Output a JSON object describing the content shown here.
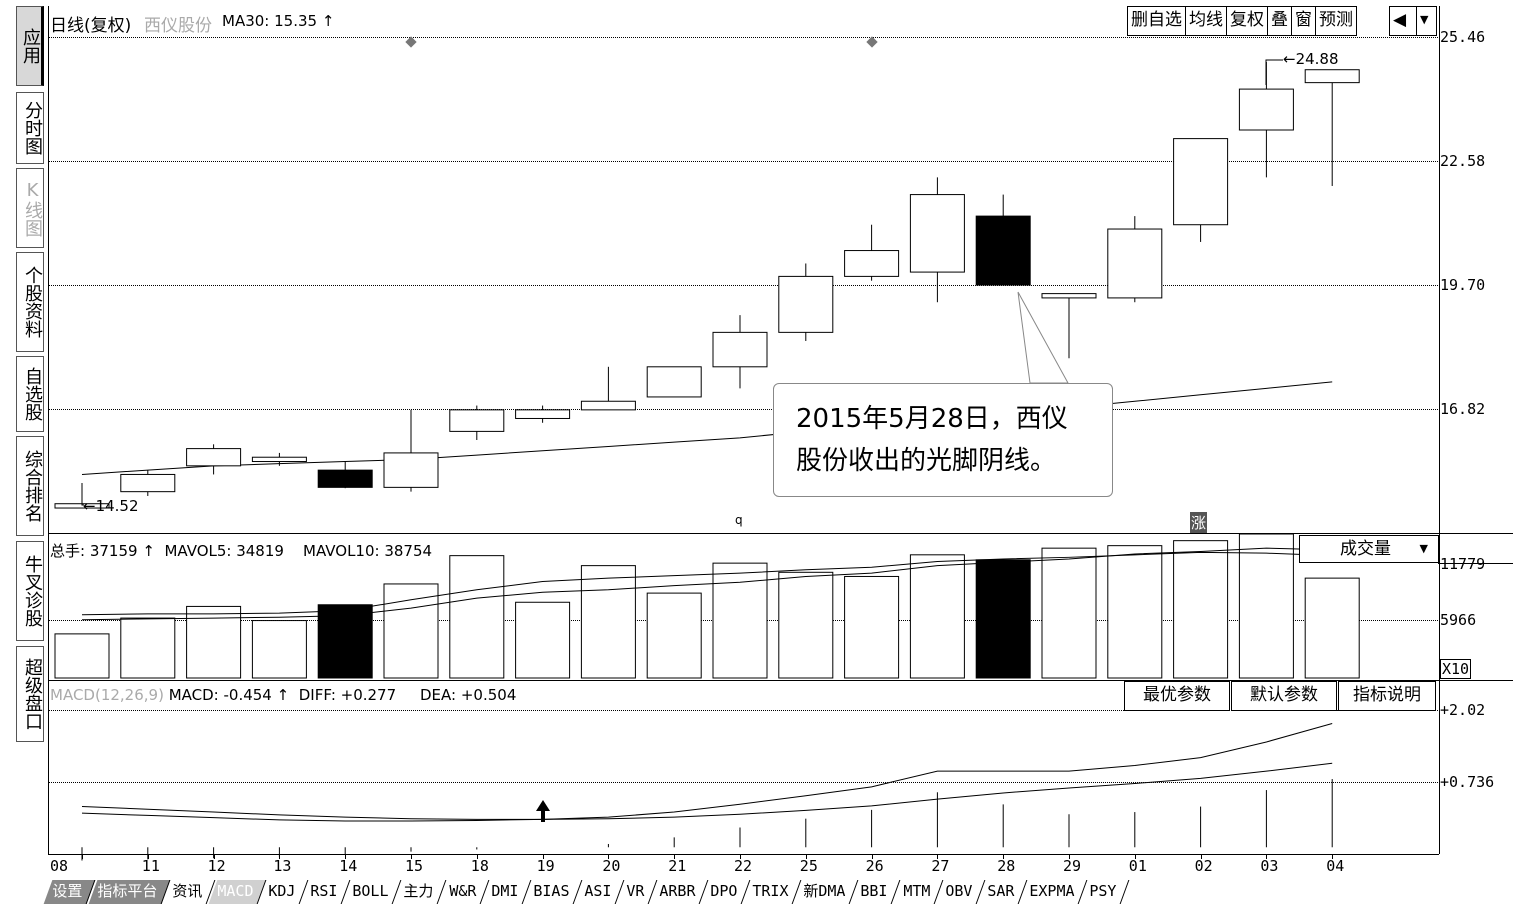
{
  "sidebar": {
    "items": [
      {
        "label": "应用",
        "active": true
      },
      {
        "label": "分时图"
      },
      {
        "label": "K线图",
        "dim": true
      },
      {
        "label": "个股资料"
      },
      {
        "label": "自选股"
      },
      {
        "label": "综合排名"
      },
      {
        "label": "牛叉诊股"
      },
      {
        "label": "超级盘口"
      }
    ]
  },
  "header": {
    "period": "日线(复权)",
    "stock_name": "西仪股份",
    "ma_text": "MA30: 15.35",
    "toolbar": [
      "删自选",
      "均线",
      "复权",
      "叠",
      "窗",
      "预测"
    ]
  },
  "price_axis": [
    "25.46",
    "22.58",
    "19.70",
    "16.82"
  ],
  "marks": {
    "high_label": "24.88",
    "low_label": "14.52",
    "q_mark": "q",
    "zhang_mark": "涨"
  },
  "callout": {
    "line1": "2015年5月28日，西仪",
    "line2": "股份收出的光脚阴线。"
  },
  "volume": {
    "info_total": "总手: 37159",
    "info_mavol5": "MAVOL5: 34819",
    "info_mavol10": "MAVOL10: 38754",
    "selector": "成交量",
    "axis": [
      "11779",
      "5966",
      "X10"
    ]
  },
  "macd": {
    "name": "MACD(12,26,9)",
    "value": "MACD: -0.454",
    "diff": "DIFF: +0.277",
    "dea": "DEA: +0.504",
    "buttons": [
      "最优参数",
      "默认参数",
      "指标说明"
    ],
    "axis": [
      "+2.02",
      "+0.736"
    ]
  },
  "x_labels": [
    "08",
    "11",
    "12",
    "13",
    "14",
    "15",
    "18",
    "19",
    "20",
    "21",
    "22",
    "25",
    "26",
    "27",
    "28",
    "29",
    "01",
    "02",
    "03",
    "04"
  ],
  "bottom_tabs": [
    "设置",
    "指标平台",
    "资讯",
    "MACD",
    "KDJ",
    "RSI",
    "BOLL",
    "主力",
    "W&R",
    "DMI",
    "BIAS",
    "ASI",
    "VR",
    "ARBR",
    "DPO",
    "TRIX",
    "新DMA",
    "BBI",
    "MTM",
    "OBV",
    "SAR",
    "EXPMA",
    "PSY"
  ],
  "chart_data": {
    "type": "candlestick",
    "categories": [
      "08",
      "11",
      "12",
      "13",
      "14",
      "15",
      "18",
      "19",
      "20",
      "21",
      "22",
      "25",
      "26",
      "27",
      "28",
      "29",
      "01",
      "02",
      "03",
      "04"
    ],
    "ohlc": [
      [
        14.52,
        14.62,
        14.52,
        14.72
      ],
      [
        14.9,
        15.3,
        14.8,
        15.4
      ],
      [
        15.5,
        15.9,
        15.3,
        16.0
      ],
      [
        15.6,
        15.7,
        15.5,
        15.8
      ],
      [
        15.4,
        15.0,
        14.98,
        15.6
      ],
      [
        15.0,
        15.8,
        14.9,
        16.8
      ],
      [
        16.3,
        16.8,
        16.1,
        16.9
      ],
      [
        16.6,
        16.8,
        16.5,
        16.9
      ],
      [
        16.8,
        17.0,
        16.8,
        17.8
      ],
      [
        17.1,
        17.8,
        17.1,
        17.8
      ],
      [
        17.8,
        18.6,
        17.3,
        19.0
      ],
      [
        18.6,
        19.9,
        18.4,
        20.2
      ],
      [
        19.9,
        20.5,
        19.8,
        21.1
      ],
      [
        20.0,
        21.8,
        19.3,
        22.2
      ],
      [
        21.3,
        19.7,
        19.7,
        21.8
      ],
      [
        19.4,
        19.5,
        18.0,
        19.5
      ],
      [
        19.4,
        21.0,
        19.3,
        21.3
      ],
      [
        21.1,
        23.1,
        20.7,
        23.1
      ],
      [
        23.3,
        24.25,
        22.2,
        24.88
      ],
      [
        24.4,
        24.7,
        22.0,
        24.7
      ]
    ],
    "ma30": [
      15.3,
      15.4,
      15.5,
      15.55,
      15.6,
      15.65,
      15.75,
      15.85,
      15.95,
      16.05,
      16.15,
      16.3,
      16.45,
      16.6,
      16.75,
      16.85,
      17.0,
      17.15,
      17.3,
      17.45
    ],
    "volume": [
      5.3,
      7.2,
      8.6,
      6.9,
      8.8,
      11.3,
      14.7,
      9.1,
      13.5,
      10.2,
      13.8,
      12.7,
      12.2,
      14.8,
      14.2,
      15.6,
      15.9,
      16.5,
      17.3,
      12.0
    ],
    "volume_axis": [
      5966,
      11779
    ],
    "mavol5_line": [
      7.6,
      7.7,
      7.7,
      7.8,
      8.1,
      9.4,
      10.6,
      11.6,
      12.0,
      12.3,
      12.6,
      13.0,
      13.3,
      14.0,
      14.3,
      14.5,
      14.8,
      15.1,
      15.0,
      14.7
    ],
    "mavol10_line": [
      7.0,
      7.1,
      7.2,
      7.3,
      7.5,
      8.4,
      9.6,
      10.3,
      10.6,
      11.1,
      11.5,
      12.2,
      12.6,
      13.5,
      13.9,
      14.3,
      14.9,
      15.2,
      15.6,
      15.4
    ],
    "macd_axis": [
      0.736,
      2.02
    ],
    "diff_line": [
      0.18,
      0.14,
      0.1,
      0.06,
      0.04,
      0.04,
      0.05,
      0.07,
      0.11,
      0.2,
      0.34,
      0.49,
      0.65,
      0.93,
      0.93,
      0.93,
      1.03,
      1.17,
      1.45,
      1.78
    ],
    "dea_line": [
      0.3,
      0.25,
      0.2,
      0.15,
      0.11,
      0.08,
      0.07,
      0.07,
      0.08,
      0.11,
      0.16,
      0.23,
      0.31,
      0.43,
      0.54,
      0.63,
      0.71,
      0.8,
      0.93,
      1.07
    ],
    "macd_hist": [
      -0.24,
      -0.22,
      -0.2,
      -0.18,
      -0.14,
      -0.08,
      -0.04,
      0.0,
      0.06,
      0.18,
      0.36,
      0.52,
      0.68,
      1.0,
      0.78,
      0.6,
      0.64,
      0.74,
      1.04,
      1.24
    ]
  }
}
